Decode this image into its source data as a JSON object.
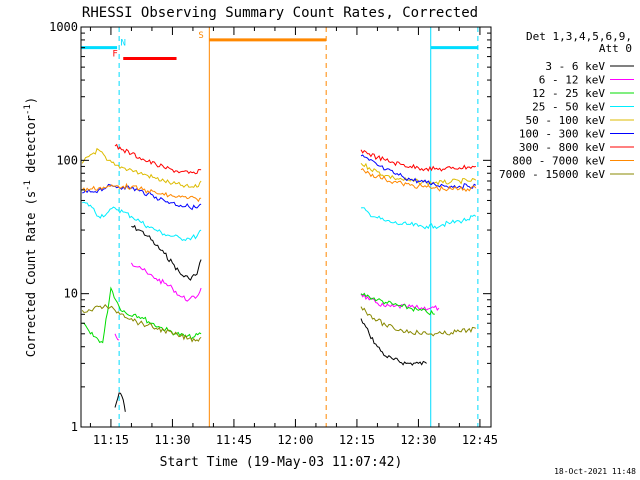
{
  "chart_data": {
    "type": "line",
    "title": "RHESSI Observing Summary Count Rates, Corrected",
    "xlabel": "Start Time (19-May-03 11:07:42)",
    "ylabel": "Corrected Count Rate (s",
    "ylabel_sup": "-1",
    "ylabel_tail": " detector",
    "ylabel_sup2": "-1",
    "ylabel_close": ")",
    "yscale": "log",
    "xlim": [
      "11:07:42",
      "12:47:42"
    ],
    "ylim": [
      1,
      1000
    ],
    "xticks": [
      "11:15",
      "11:30",
      "11:45",
      "12:00",
      "12:15",
      "12:30",
      "12:45"
    ],
    "yticks": [
      {
        "value": 1,
        "label": "1"
      },
      {
        "value": 10,
        "label": "10"
      },
      {
        "value": 100,
        "label": "100"
      },
      {
        "value": 1000,
        "label": "1000"
      }
    ],
    "legend_header": [
      "Det 1,3,4,5,6,9,",
      "Att 0"
    ],
    "legend_position": "right",
    "series": [
      {
        "name": "3 - 6 keV",
        "color": "#000000",
        "segments": [
          {
            "x": [
              "11:16",
              "11:17",
              "11:18",
              "11:18:30"
            ],
            "y": [
              1.4,
              1.8,
              1.6,
              1.3
            ]
          },
          {
            "x": [
              "11:20",
              "11:22",
              "11:24",
              "11:26",
              "11:28",
              "11:30",
              "11:32",
              "11:34",
              "11:36",
              "11:37"
            ],
            "y": [
              32,
              30,
              27,
              23,
              20,
              17,
              14,
              13,
              14,
              18
            ]
          },
          {
            "x": [
              "12:16",
              "12:18",
              "12:20",
              "12:22",
              "12:24",
              "12:27",
              "12:30",
              "12:32"
            ],
            "y": [
              6.5,
              5,
              4,
              3.4,
              3.2,
              3,
              3,
              3
            ]
          }
        ]
      },
      {
        "name": "6 - 12 keV",
        "color": "#ff00ff",
        "segments": [
          {
            "x": [
              "11:16",
              "11:17"
            ],
            "y": [
              5,
              4.5
            ]
          },
          {
            "x": [
              "11:20",
              "11:22",
              "11:24",
              "11:26",
              "11:28",
              "11:30",
              "11:32",
              "11:34",
              "11:36",
              "11:37"
            ],
            "y": [
              17,
              16,
              14,
              13,
              12,
              11,
              9.5,
              9,
              9.5,
              11
            ]
          },
          {
            "x": [
              "12:16",
              "12:18",
              "12:20",
              "12:22",
              "12:24",
              "12:27",
              "12:30",
              "12:33",
              "12:35"
            ],
            "y": [
              10,
              9,
              8.5,
              8,
              8,
              8,
              7.8,
              7.8,
              7.8
            ]
          }
        ]
      },
      {
        "name": "12 - 25 keV",
        "color": "#00dd00",
        "segments": [
          {
            "x": [
              "11:08",
              "11:10",
              "11:13",
              "11:15",
              "11:17",
              "11:19",
              "11:21",
              "11:23",
              "11:25",
              "11:27",
              "11:29",
              "11:31",
              "11:33",
              "11:35",
              "11:37"
            ],
            "y": [
              6,
              5,
              4.3,
              11,
              8,
              7,
              7,
              6.5,
              6,
              5.6,
              5.3,
              5,
              4.8,
              4.7,
              5
            ]
          },
          {
            "x": [
              "12:16",
              "12:18",
              "12:20",
              "12:22",
              "12:24",
              "12:26",
              "12:28",
              "12:30",
              "12:32",
              "12:34"
            ],
            "y": [
              10,
              9.5,
              9,
              8.6,
              8.3,
              8,
              7.8,
              7.5,
              7.3,
              7
            ]
          }
        ]
      },
      {
        "name": "25 - 50 keV",
        "color": "#00eeff",
        "segments": [
          {
            "x": [
              "11:08",
              "11:10",
              "11:12",
              "11:14",
              "11:16",
              "11:18",
              "11:20",
              "11:22",
              "11:24",
              "11:26",
              "11:28",
              "11:30",
              "11:32",
              "11:34",
              "11:36",
              "11:37"
            ],
            "y": [
              48,
              46,
              38,
              40,
              44,
              41,
              38,
              35,
              32,
              30,
              28,
              27,
              26,
              26,
              27,
              30
            ]
          },
          {
            "x": [
              "12:16",
              "12:18",
              "12:20",
              "12:22",
              "12:24",
              "12:26",
              "12:28",
              "12:30",
              "12:32",
              "12:34",
              "12:36",
              "12:38",
              "12:40",
              "12:42",
              "12:44"
            ],
            "y": [
              44,
              40,
              37,
              35,
              34,
              33,
              33,
              32,
              32,
              32,
              33,
              34,
              35,
              36,
              38
            ]
          }
        ]
      },
      {
        "name": "50 - 100 keV",
        "color": "#ddbb00",
        "segments": [
          {
            "x": [
              "11:08",
              "11:10",
              "11:12",
              "11:14",
              "11:16",
              "11:18",
              "11:20",
              "11:22",
              "11:24",
              "11:26",
              "11:28",
              "11:30",
              "11:32",
              "11:34",
              "11:36",
              "11:37"
            ],
            "y": [
              95,
              110,
              120,
              100,
              92,
              88,
              85,
              80,
              77,
              73,
              70,
              67,
              65,
              63,
              63,
              70
            ]
          },
          {
            "x": [
              "12:16",
              "12:18",
              "12:20",
              "12:22",
              "12:24",
              "12:26",
              "12:28",
              "12:30",
              "12:32",
              "12:34",
              "12:36",
              "12:38",
              "12:40",
              "12:42",
              "12:44"
            ],
            "y": [
              95,
              88,
              82,
              77,
              74,
              72,
              70,
              69,
              68,
              68,
              68,
              69,
              70,
              70,
              71
            ]
          }
        ]
      },
      {
        "name": "100 - 300 keV",
        "color": "#0000ff",
        "segments": [
          {
            "x": [
              "11:08",
              "11:10",
              "11:12",
              "11:14",
              "11:16",
              "11:18",
              "11:20",
              "11:22",
              "11:24",
              "11:26",
              "11:28",
              "11:30",
              "11:32",
              "11:34",
              "11:36",
              "11:37"
            ],
            "y": [
              57,
              58,
              60,
              63,
              64,
              63,
              62,
              59,
              56,
              53,
              50,
              48,
              46,
              45,
              44,
              47
            ]
          },
          {
            "x": [
              "12:16",
              "12:18",
              "12:20",
              "12:22",
              "12:24",
              "12:26",
              "12:28",
              "12:30",
              "12:32",
              "12:34",
              "12:36",
              "12:38",
              "12:40",
              "12:42",
              "12:44"
            ],
            "y": [
              108,
              100,
              92,
              85,
              80,
              76,
              72,
              70,
              68,
              66,
              65,
              64,
              64,
              64,
              65
            ]
          }
        ]
      },
      {
        "name": "300 - 800 keV",
        "color": "#ff0000",
        "segments": [
          {
            "x": [
              "11:16",
              "11:18",
              "11:20",
              "11:22",
              "11:24",
              "11:26",
              "11:28",
              "11:30",
              "11:32",
              "11:34",
              "11:36",
              "11:37"
            ],
            "y": [
              128,
              120,
              112,
              105,
              98,
              93,
              88,
              85,
              82,
              80,
              80,
              85
            ]
          },
          {
            "x": [
              "12:16",
              "12:18",
              "12:20",
              "12:22",
              "12:24",
              "12:26",
              "12:28",
              "12:30",
              "12:32",
              "12:34",
              "12:36",
              "12:38",
              "12:40",
              "12:42",
              "12:44"
            ],
            "y": [
              120,
              112,
              105,
              100,
              96,
              93,
              90,
              88,
              87,
              86,
              86,
              87,
              88,
              89,
              90
            ]
          }
        ]
      },
      {
        "name": "800 - 7000 keV",
        "color": "#ff8800",
        "segments": [
          {
            "x": [
              "11:08",
              "11:10",
              "11:12",
              "11:14",
              "11:16",
              "11:18",
              "11:20",
              "11:22",
              "11:24",
              "11:26",
              "11:28",
              "11:30",
              "11:32",
              "11:34",
              "11:36",
              "11:37"
            ],
            "y": [
              60,
              61,
              62,
              63,
              64,
              64,
              63,
              61,
              59,
              57,
              55,
              54,
              53,
              52,
              51,
              52
            ]
          },
          {
            "x": [
              "12:16",
              "12:18",
              "12:20",
              "12:22",
              "12:24",
              "12:26",
              "12:28",
              "12:30",
              "12:32",
              "12:34",
              "12:36",
              "12:38",
              "12:40",
              "12:42",
              "12:44"
            ],
            "y": [
              85,
              80,
              76,
              72,
              69,
              67,
              65,
              64,
              63,
              62,
              61,
              61,
              61,
              61,
              62
            ]
          }
        ]
      },
      {
        "name": "7000 - 15000 keV",
        "color": "#888800",
        "segments": [
          {
            "x": [
              "11:08",
              "11:10",
              "11:12",
              "11:14",
              "11:16",
              "11:18",
              "11:20",
              "11:22",
              "11:24",
              "11:26",
              "11:28",
              "11:30",
              "11:32",
              "11:34",
              "11:36",
              "11:37"
            ],
            "y": [
              7.5,
              7.5,
              8,
              8,
              7.5,
              7,
              6.5,
              6,
              5.8,
              5.5,
              5.3,
              5,
              4.8,
              4.6,
              4.5,
              4.7
            ]
          },
          {
            "x": [
              "12:16",
              "12:18",
              "12:20",
              "12:22",
              "12:24",
              "12:26",
              "12:28",
              "12:30",
              "12:32",
              "12:34",
              "12:36",
              "12:38",
              "12:40",
              "12:42",
              "12:44"
            ],
            "y": [
              8,
              7,
              6.3,
              5.8,
              5.5,
              5.3,
              5.2,
              5.1,
              5,
              5,
              5,
              5.1,
              5.2,
              5.3,
              5.5
            ]
          }
        ]
      }
    ],
    "annotations": [
      {
        "label": "N",
        "color": "#00ddff",
        "x_start": "11:07:42",
        "x_end": "11:16:30",
        "y_level": 700,
        "label_x": "11:18"
      },
      {
        "label": "N",
        "color": "#00ddff",
        "x_start": "12:33",
        "x_end": "12:44:30",
        "y_level": 700,
        "label_x": ""
      },
      {
        "label": "F",
        "color": "#ff0000",
        "x_start": "11:18",
        "x_end": "11:31",
        "y_level": 580,
        "label_x": "11:16"
      },
      {
        "label": "S",
        "color": "#ff8800",
        "x_start": "11:39",
        "x_end": "12:07:30",
        "y_level": 800,
        "label_x": "11:37"
      }
    ],
    "vlines": [
      {
        "x": "11:17",
        "color": "#00ddff",
        "style": "dashed"
      },
      {
        "x": "11:39",
        "color": "#ff8800",
        "style": "solid"
      },
      {
        "x": "12:07:30",
        "color": "#ff8800",
        "style": "dashed"
      },
      {
        "x": "12:33",
        "color": "#00ddff",
        "style": "solid"
      },
      {
        "x": "12:44:30",
        "color": "#00ddff",
        "style": "dashed"
      }
    ],
    "grid": false
  },
  "footer_timestamp": "18-Oct-2021 11:48"
}
